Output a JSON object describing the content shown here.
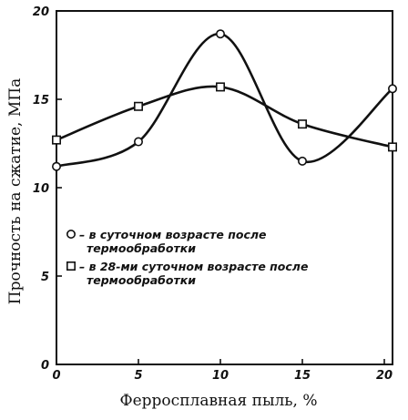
{
  "chart_data": {
    "type": "line",
    "title": "",
    "xlabel": "Ферросплавная пыль, %",
    "ylabel": "Прочность на сжатие, МПа",
    "xlim": [
      0,
      20.5
    ],
    "ylim": [
      0,
      20
    ],
    "xticks": [
      0,
      5,
      10,
      15,
      20
    ],
    "yticks": [
      0,
      5,
      10,
      15,
      20
    ],
    "x_tick_labels": [
      "0",
      "5",
      "10",
      "15",
      "20"
    ],
    "y_tick_labels": [
      "0",
      "5",
      "10",
      "15",
      "20"
    ],
    "grid": false,
    "legend_position": "left",
    "series": [
      {
        "name": "– в суточном возрасте после термообработки",
        "marker": "circle",
        "x": [
          0,
          5,
          10,
          15,
          20.5
        ],
        "y": [
          11.2,
          12.6,
          18.7,
          11.5,
          15.6
        ]
      },
      {
        "name": "– в 28-ми суточном возрасте после термообработки",
        "marker": "square",
        "x": [
          0,
          5,
          10,
          15,
          20.5
        ],
        "y": [
          12.7,
          14.6,
          15.7,
          13.6,
          12.3
        ]
      }
    ],
    "legend": [
      {
        "marker": "circle",
        "lines": [
          "– в суточном возрасте после",
          "термообработки"
        ]
      },
      {
        "marker": "square",
        "lines": [
          "– в 28-ми суточном возрасте после",
          "термообработки"
        ]
      }
    ]
  }
}
